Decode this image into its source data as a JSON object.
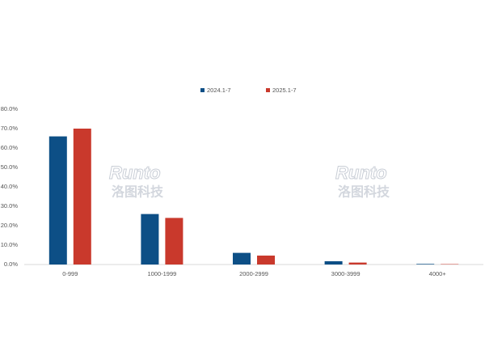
{
  "chart_data": {
    "type": "bar",
    "categories": [
      "0-999",
      "1000-1999",
      "2000-2999",
      "3000-3999",
      "4000+"
    ],
    "series": [
      {
        "name": "2024.1-7",
        "color": "#0d4f86",
        "values": [
          66,
          26,
          6,
          1.7,
          0.3
        ]
      },
      {
        "name": "2025.1-7",
        "color": "#c9392c",
        "values": [
          70,
          24,
          4.6,
          1.0,
          0.2
        ]
      }
    ],
    "ylim": [
      0,
      80
    ],
    "yticks": [
      {
        "value": 0,
        "label": "0.0%"
      },
      {
        "value": 10,
        "label": "10.0%"
      },
      {
        "value": 20,
        "label": "20.0%"
      },
      {
        "value": 30,
        "label": "30.0%"
      },
      {
        "value": 40,
        "label": "40.0%"
      },
      {
        "value": 50,
        "label": "50.0%"
      },
      {
        "value": 60,
        "label": "60.0%"
      },
      {
        "value": 70,
        "label": "70.0%"
      },
      {
        "value": 80,
        "label": "80.0%"
      }
    ],
    "grid": false,
    "legend": "top",
    "watermark": "Runto",
    "watermark_cn": "洛图科技"
  }
}
